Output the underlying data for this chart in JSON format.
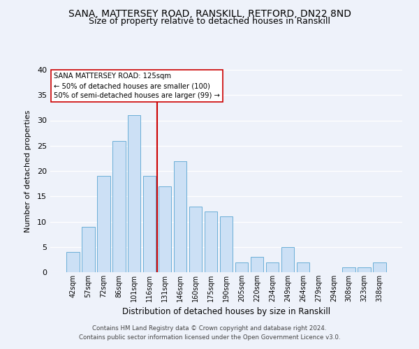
{
  "title": "SANA, MATTERSEY ROAD, RANSKILL, RETFORD, DN22 8ND",
  "subtitle": "Size of property relative to detached houses in Ranskill",
  "xlabel": "Distribution of detached houses by size in Ranskill",
  "ylabel": "Number of detached properties",
  "categories": [
    "42sqm",
    "57sqm",
    "72sqm",
    "86sqm",
    "101sqm",
    "116sqm",
    "131sqm",
    "146sqm",
    "160sqm",
    "175sqm",
    "190sqm",
    "205sqm",
    "220sqm",
    "234sqm",
    "249sqm",
    "264sqm",
    "279sqm",
    "294sqm",
    "308sqm",
    "323sqm",
    "338sqm"
  ],
  "values": [
    4,
    9,
    19,
    26,
    31,
    19,
    17,
    22,
    13,
    12,
    11,
    2,
    3,
    2,
    5,
    2,
    0,
    0,
    1,
    1,
    2
  ],
  "bar_color": "#cce0f5",
  "bar_edge_color": "#6aaed6",
  "vline_color": "#cc0000",
  "annotation_title": "SANA MATTERSEY ROAD: 125sqm",
  "annotation_line1": "← 50% of detached houses are smaller (100)",
  "annotation_line2": "50% of semi-detached houses are larger (99) →",
  "annotation_box_color": "#ffffff",
  "annotation_box_edge": "#cc0000",
  "ylim": [
    0,
    40
  ],
  "yticks": [
    0,
    5,
    10,
    15,
    20,
    25,
    30,
    35,
    40
  ],
  "footer_line1": "Contains HM Land Registry data © Crown copyright and database right 2024.",
  "footer_line2": "Contains public sector information licensed under the Open Government Licence v3.0.",
  "background_color": "#eef2fa",
  "plot_background": "#eef2fa",
  "grid_color": "#ffffff",
  "title_fontsize": 10,
  "subtitle_fontsize": 9
}
